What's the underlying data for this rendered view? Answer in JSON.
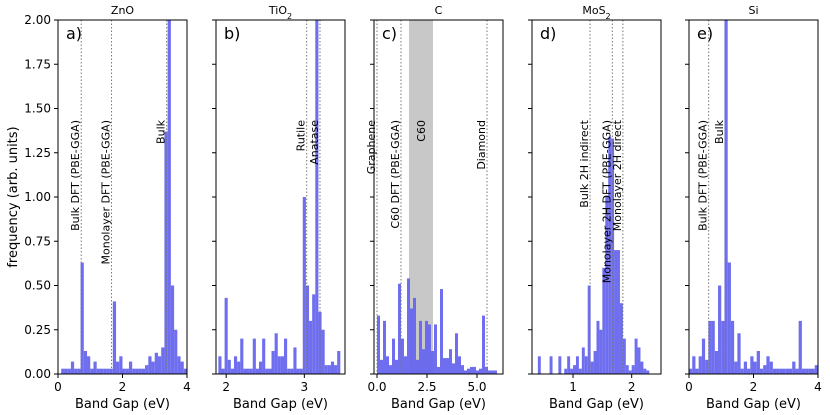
{
  "chart_data": {
    "type": "bar",
    "ylabel": "frequency (arb. units)",
    "xlabel": "Band Gap (eV)",
    "ylim": [
      0,
      2.0
    ],
    "yticks": [
      0.0,
      0.25,
      0.5,
      0.75,
      1.0,
      1.25,
      1.5,
      1.75,
      2.0
    ],
    "bar_color": "#6666ee",
    "panels": [
      {
        "letter": "a)",
        "title": "ZnO",
        "xlim": [
          0,
          4.0
        ],
        "xticks": [
          0,
          2,
          4
        ],
        "bins": {
          "start": 0.0,
          "width": 0.1,
          "values": [
            0,
            0.03,
            0.03,
            0.03,
            0.07,
            0.03,
            0.03,
            0.63,
            0.13,
            0.1,
            0.03,
            0.07,
            0.03,
            0.03,
            0.03,
            0.03,
            0.03,
            0.41,
            0.07,
            0.1,
            0.03,
            0.03,
            0.07,
            0.03,
            0.03,
            0.03,
            0.03,
            0.05,
            0.1,
            0.07,
            0.12,
            0.1,
            0.15,
            1.37,
            2.0,
            0.5,
            0.25,
            0.1,
            0.07,
            0.03
          ]
        },
        "refs": [
          {
            "x": 0.72,
            "label": "Bulk DFT (PBE-GGA)"
          },
          {
            "x": 1.66,
            "label": "Monolayer DFT (PBE-GGA)"
          },
          {
            "x": 3.37,
            "label": "Bulk"
          }
        ]
      },
      {
        "letter": "b)",
        "title": "TiO",
        "title_sub": "2",
        "xlim": [
          1.87,
          3.52
        ],
        "xticks": [
          2,
          3
        ],
        "bins": {
          "start": 1.9,
          "width": 0.04,
          "values": [
            0.1,
            0.03,
            0.43,
            0.08,
            0.03,
            0.1,
            0.07,
            0.2,
            0.03,
            0.03,
            0.03,
            0.2,
            0.03,
            0.07,
            0.2,
            0.03,
            0.03,
            0.13,
            0.23,
            0.1,
            0.1,
            0.2,
            0.03,
            0.03,
            0.15,
            0.03,
            0.03,
            1.0,
            0.5,
            0.3,
            0.45,
            2.0,
            0.35,
            0.25,
            0.05,
            0.05,
            0.07,
            0.05,
            0.13
          ]
        },
        "refs": [
          {
            "x": 3.03,
            "label": "Rutile"
          },
          {
            "x": 3.2,
            "label": "Anatase"
          }
        ]
      },
      {
        "letter": "c)",
        "title": "C",
        "xlim": [
          -0.15,
          6.3
        ],
        "xticks": [
          0.0,
          2.5,
          5.0
        ],
        "xtick_labels": [
          "0.0",
          "2.5",
          "5.0"
        ],
        "shade": [
          1.6,
          2.8
        ],
        "shade_label": "C60",
        "bins": {
          "start": 0.0,
          "width": 0.15,
          "values": [
            0.33,
            0.08,
            0.3,
            0.1,
            0.05,
            0.2,
            0.08,
            0.51,
            0.2,
            0.1,
            0.54,
            0.37,
            0.43,
            0.08,
            0.3,
            0.14,
            0.3,
            0.28,
            0.13,
            0.28,
            0.04,
            0.48,
            0.09,
            0.09,
            0.14,
            0.06,
            0.23,
            0.1,
            0.05,
            0.02,
            0.03,
            0.04,
            0.04,
            0.02,
            0.03,
            0.33,
            0.04,
            0.02,
            0.02,
            0.02
          ]
        },
        "refs": [
          {
            "x": 0.0,
            "label": "Graphene"
          },
          {
            "x": 1.2,
            "label": "C60 DFT (PBE-GGA)"
          },
          {
            "x": 5.5,
            "label": "Diamond"
          }
        ]
      },
      {
        "letter": "d)",
        "title": "MoS",
        "title_sub": "2",
        "xlim": [
          0.3,
          2.5
        ],
        "xticks": [
          1,
          2
        ],
        "bins": {
          "start": 0.3,
          "width": 0.05,
          "values": [
            0,
            0,
            0.1,
            0,
            0,
            0,
            0.1,
            0,
            0,
            0.1,
            0,
            0.03,
            0.1,
            0.03,
            0.05,
            0.1,
            0.03,
            0.15,
            0.1,
            0.5,
            0.07,
            0.13,
            0.3,
            0.25,
            0.6,
            1.0,
            1.34,
            1.33,
            0.7,
            0.7,
            0.4,
            0.2,
            0.05,
            0.02,
            0.05,
            0.2,
            0.15,
            0.07,
            0.03,
            0.02
          ]
        },
        "refs": [
          {
            "x": 1.29,
            "label": "Bulk 2H indirect"
          },
          {
            "x": 1.67,
            "label": "Monolayer 2H DFT (PBE-GGA)"
          },
          {
            "x": 1.85,
            "label": "Monolayer 2H direct"
          }
        ]
      },
      {
        "letter": "e)",
        "title": "Si",
        "xlim": [
          0,
          4.0
        ],
        "xticks": [
          0,
          2,
          4
        ],
        "bins": {
          "start": 0.0,
          "width": 0.1,
          "values": [
            0.03,
            0.1,
            0.03,
            0.1,
            0.2,
            0.08,
            0.3,
            0.3,
            0.13,
            0.5,
            0.3,
            2.0,
            0.63,
            0.3,
            0.07,
            0.23,
            0.03,
            0.07,
            0.03,
            0.1,
            0.07,
            0.13,
            0.03,
            0.05,
            0.1,
            0.07,
            0.03,
            0.03,
            0.03,
            0.03,
            0.03,
            0.03,
            0.07,
            0.03,
            0.3,
            0.03,
            0.03,
            0.03,
            0.03,
            0.05
          ]
        },
        "refs": [
          {
            "x": 0.61,
            "label": "Bulk DFT (PBE-GGA)"
          },
          {
            "x": 1.12,
            "label": "Bulk"
          }
        ]
      }
    ]
  }
}
